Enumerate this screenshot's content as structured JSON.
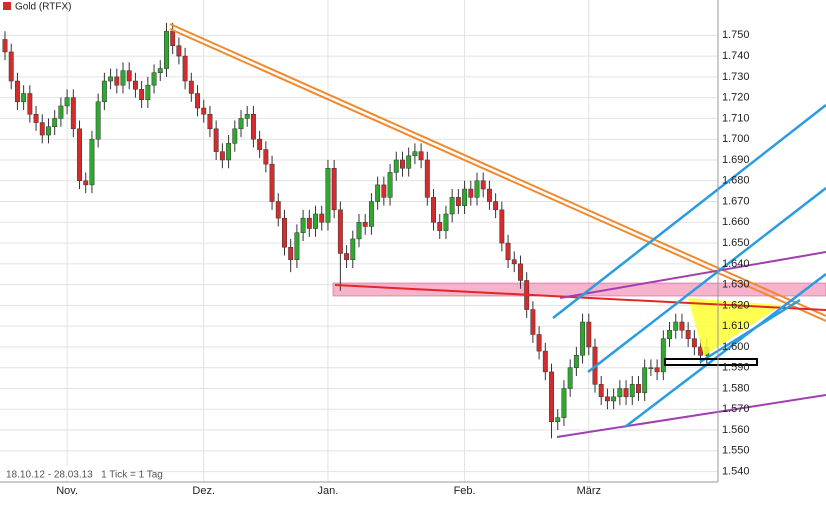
{
  "chart_data": {
    "type": "candlestick",
    "title": "Gold (RTFX)",
    "footer": "18.10.12 - 28.03.13   1 Tick = 1 Tag",
    "up_color": "#2ea82e",
    "down_color": "#d42c2c",
    "title_color": "#d42c2c",
    "grid": true,
    "ylim": [
      1.535,
      1.767
    ],
    "yticks": [
      {
        "value": 1.54,
        "label": "1.540"
      },
      {
        "value": 1.55,
        "label": "1.550"
      },
      {
        "value": 1.56,
        "label": "1.560"
      },
      {
        "value": 1.57,
        "label": "1.570"
      },
      {
        "value": 1.58,
        "label": "1.580"
      },
      {
        "value": 1.59,
        "label": "1.590"
      },
      {
        "value": 1.6,
        "label": "1.600"
      },
      {
        "value": 1.61,
        "label": "1.610"
      },
      {
        "value": 1.62,
        "label": "1.620"
      },
      {
        "value": 1.63,
        "label": "1.630"
      },
      {
        "value": 1.64,
        "label": "1.640"
      },
      {
        "value": 1.65,
        "label": "1.650"
      },
      {
        "value": 1.66,
        "label": "1.660"
      },
      {
        "value": 1.67,
        "label": "1.670"
      },
      {
        "value": 1.68,
        "label": "1.680"
      },
      {
        "value": 1.69,
        "label": "1.690"
      },
      {
        "value": 1.7,
        "label": "1.700"
      },
      {
        "value": 1.71,
        "label": "1.710"
      },
      {
        "value": 1.72,
        "label": "1.720"
      },
      {
        "value": 1.73,
        "label": "1.730"
      },
      {
        "value": 1.74,
        "label": "1.740"
      },
      {
        "value": 1.75,
        "label": "1.750"
      }
    ],
    "categories": [
      null,
      null,
      null,
      null,
      null,
      null,
      null,
      null,
      null,
      null,
      "Nov.",
      null,
      null,
      null,
      null,
      null,
      null,
      null,
      null,
      null,
      null,
      null,
      null,
      null,
      null,
      null,
      null,
      null,
      null,
      null,
      null,
      null,
      "Dez.",
      null,
      null,
      null,
      null,
      null,
      null,
      null,
      null,
      null,
      null,
      null,
      null,
      null,
      null,
      null,
      null,
      null,
      null,
      null,
      "Jan.",
      null,
      null,
      null,
      null,
      null,
      null,
      null,
      null,
      null,
      null,
      null,
      null,
      null,
      null,
      null,
      null,
      null,
      null,
      null,
      null,
      null,
      "Feb.",
      null,
      null,
      null,
      null,
      null,
      null,
      null,
      null,
      null,
      null,
      null,
      null,
      null,
      null,
      null,
      null,
      null,
      null,
      null,
      "März",
      null,
      null,
      null,
      null,
      null,
      null,
      null,
      null,
      null,
      null,
      null,
      null,
      null,
      null,
      null,
      null,
      null,
      null,
      null
    ],
    "open": [
      1.748,
      1.742,
      1.728,
      1.718,
      1.722,
      1.712,
      1.708,
      1.702,
      1.706,
      1.71,
      1.716,
      1.72,
      1.705,
      1.68,
      1.678,
      1.7,
      1.718,
      1.728,
      1.73,
      1.726,
      1.733,
      1.728,
      1.724,
      1.719,
      1.726,
      1.732,
      1.734,
      1.752,
      1.745,
      1.74,
      1.728,
      1.722,
      1.715,
      1.712,
      1.705,
      1.694,
      1.69,
      1.698,
      1.705,
      1.71,
      1.712,
      1.7,
      1.695,
      1.688,
      1.67,
      1.662,
      1.648,
      1.642,
      1.655,
      1.662,
      1.657,
      1.664,
      1.66,
      1.686,
      1.666,
      1.645,
      1.642,
      1.652,
      1.66,
      1.658,
      1.67,
      1.678,
      1.672,
      1.684,
      1.69,
      1.686,
      1.692,
      1.694,
      1.69,
      1.672,
      1.66,
      1.656,
      1.664,
      1.672,
      1.668,
      1.676,
      1.672,
      1.68,
      1.676,
      1.67,
      1.666,
      1.65,
      1.642,
      1.64,
      1.632,
      1.618,
      1.606,
      1.598,
      1.588,
      1.564,
      1.566,
      1.58,
      1.59,
      1.596,
      1.612,
      1.6,
      1.582,
      1.576,
      1.574,
      1.576,
      1.58,
      1.576,
      1.582,
      1.578,
      1.59,
      1.59,
      1.588,
      1.604,
      1.608,
      1.612,
      1.608,
      1.604,
      1.6,
      1.596
    ],
    "high": [
      1.752,
      1.746,
      1.732,
      1.726,
      1.726,
      1.716,
      1.712,
      1.71,
      1.714,
      1.72,
      1.724,
      1.724,
      1.709,
      1.684,
      1.704,
      1.722,
      1.732,
      1.734,
      1.734,
      1.737,
      1.737,
      1.732,
      1.728,
      1.73,
      1.736,
      1.738,
      1.756,
      1.756,
      1.749,
      1.744,
      1.732,
      1.726,
      1.719,
      1.716,
      1.709,
      1.698,
      1.702,
      1.709,
      1.714,
      1.716,
      1.716,
      1.704,
      1.699,
      1.692,
      1.674,
      1.666,
      1.652,
      1.659,
      1.666,
      1.666,
      1.668,
      1.668,
      1.69,
      1.69,
      1.67,
      1.649,
      1.656,
      1.664,
      1.664,
      1.674,
      1.682,
      1.682,
      1.688,
      1.694,
      1.694,
      1.696,
      1.698,
      1.698,
      1.694,
      1.676,
      1.664,
      1.668,
      1.676,
      1.676,
      1.68,
      1.68,
      1.684,
      1.684,
      1.68,
      1.674,
      1.67,
      1.654,
      1.646,
      1.644,
      1.636,
      1.622,
      1.61,
      1.602,
      1.592,
      1.57,
      1.584,
      1.594,
      1.6,
      1.616,
      1.616,
      1.604,
      1.586,
      1.58,
      1.58,
      1.584,
      1.584,
      1.586,
      1.586,
      1.594,
      1.594,
      1.594,
      1.608,
      1.612,
      1.616,
      1.616,
      1.612,
      1.608,
      1.604,
      1.604
    ],
    "low": [
      1.738,
      1.724,
      1.714,
      1.714,
      1.708,
      1.704,
      1.698,
      1.698,
      1.702,
      1.706,
      1.712,
      1.701,
      1.676,
      1.674,
      1.674,
      1.696,
      1.714,
      1.724,
      1.722,
      1.722,
      1.724,
      1.72,
      1.715,
      1.715,
      1.722,
      1.728,
      1.73,
      1.741,
      1.736,
      1.724,
      1.718,
      1.711,
      1.708,
      1.701,
      1.69,
      1.686,
      1.686,
      1.694,
      1.701,
      1.706,
      1.696,
      1.691,
      1.684,
      1.666,
      1.658,
      1.644,
      1.636,
      1.638,
      1.651,
      1.653,
      1.653,
      1.656,
      1.656,
      1.662,
      1.627,
      1.638,
      1.638,
      1.648,
      1.654,
      1.654,
      1.666,
      1.668,
      1.668,
      1.68,
      1.682,
      1.682,
      1.688,
      1.686,
      1.668,
      1.656,
      1.652,
      1.652,
      1.66,
      1.664,
      1.664,
      1.668,
      1.668,
      1.672,
      1.666,
      1.662,
      1.646,
      1.638,
      1.636,
      1.628,
      1.614,
      1.602,
      1.594,
      1.584,
      1.556,
      1.56,
      1.562,
      1.576,
      1.586,
      1.592,
      1.596,
      1.578,
      1.572,
      1.57,
      1.57,
      1.572,
      1.572,
      1.572,
      1.574,
      1.574,
      1.586,
      1.584,
      1.584,
      1.6,
      1.604,
      1.604,
      1.6,
      1.596,
      1.592,
      1.592
    ],
    "close": [
      1.742,
      1.728,
      1.718,
      1.722,
      1.712,
      1.708,
      1.702,
      1.706,
      1.71,
      1.716,
      1.72,
      1.705,
      1.68,
      1.678,
      1.7,
      1.718,
      1.728,
      1.73,
      1.726,
      1.733,
      1.728,
      1.724,
      1.719,
      1.726,
      1.732,
      1.734,
      1.752,
      1.745,
      1.74,
      1.728,
      1.722,
      1.715,
      1.712,
      1.705,
      1.694,
      1.69,
      1.698,
      1.705,
      1.71,
      1.712,
      1.7,
      1.695,
      1.688,
      1.67,
      1.662,
      1.648,
      1.642,
      1.655,
      1.662,
      1.657,
      1.664,
      1.66,
      1.686,
      1.666,
      1.645,
      1.642,
      1.652,
      1.66,
      1.658,
      1.67,
      1.678,
      1.672,
      1.684,
      1.69,
      1.686,
      1.692,
      1.694,
      1.69,
      1.672,
      1.66,
      1.656,
      1.664,
      1.672,
      1.668,
      1.676,
      1.672,
      1.68,
      1.676,
      1.67,
      1.666,
      1.65,
      1.642,
      1.64,
      1.632,
      1.618,
      1.606,
      1.598,
      1.588,
      1.564,
      1.566,
      1.58,
      1.59,
      1.596,
      1.612,
      1.6,
      1.582,
      1.576,
      1.574,
      1.576,
      1.58,
      1.576,
      1.582,
      1.578,
      1.59,
      1.59,
      1.588,
      1.604,
      1.608,
      1.612,
      1.608,
      1.604,
      1.6,
      1.596,
      1.6
    ]
  }
}
